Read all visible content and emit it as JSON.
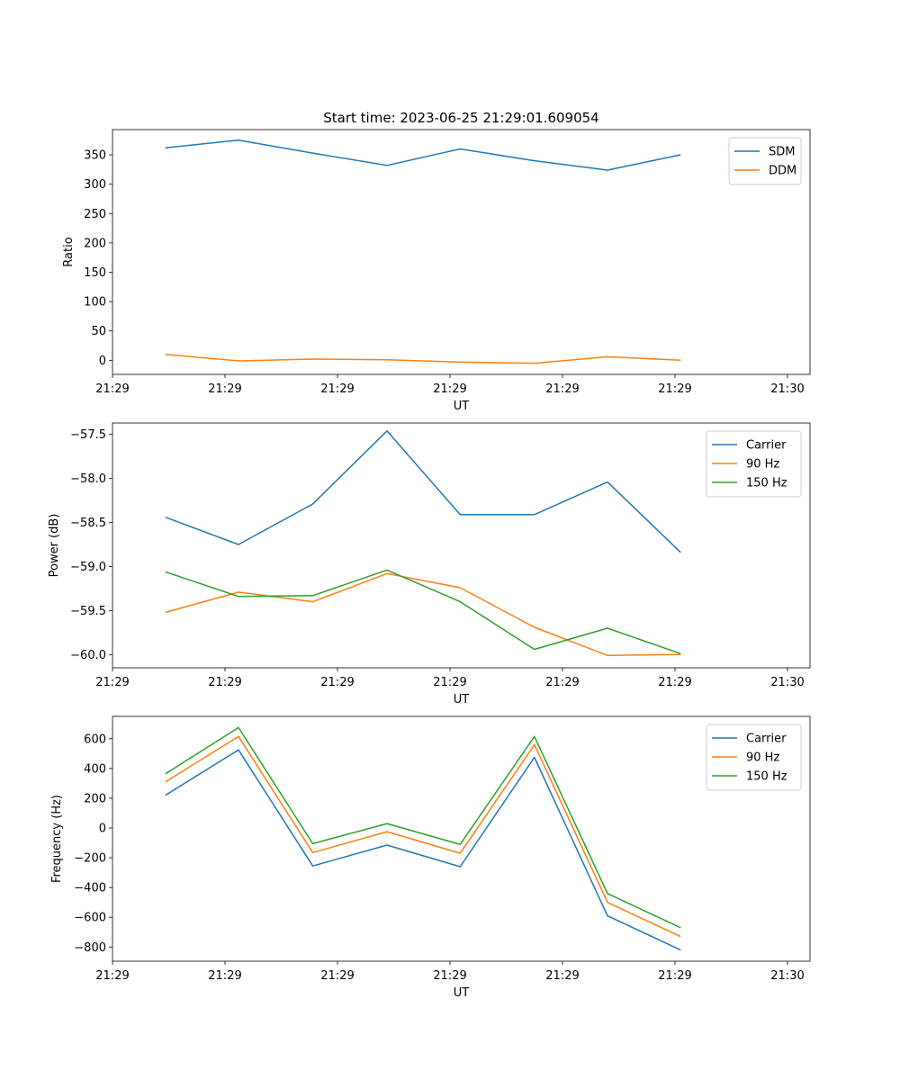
{
  "chart_data": [
    {
      "type": "line",
      "title": "Start time: 2023-06-25 21:29:01.609054",
      "xlabel": "UT",
      "ylabel": "Ratio",
      "x_tick_labels": [
        "21:29",
        "21:29",
        "21:29",
        "21:29",
        "21:29",
        "21:29",
        "21:30"
      ],
      "xlim": [
        0,
        6.2
      ],
      "x": [
        0.47,
        1.12,
        1.78,
        2.44,
        3.09,
        3.75,
        4.4,
        5.05
      ],
      "ylim": [
        -24,
        393
      ],
      "y_ticks": [
        0,
        50,
        100,
        150,
        200,
        250,
        300,
        350
      ],
      "legend": "top-right",
      "series": [
        {
          "name": "SDM",
          "color": "#1f77b4",
          "values": [
            362,
            375,
            353,
            332,
            360,
            340,
            324,
            350
          ]
        },
        {
          "name": "DDM",
          "color": "#ff7f0e",
          "values": [
            10,
            -1,
            2,
            1,
            -3,
            -5,
            6,
            0
          ]
        }
      ]
    },
    {
      "type": "line",
      "title": "",
      "xlabel": "UT",
      "ylabel": "Power (dB)",
      "x_tick_labels": [
        "21:29",
        "21:29",
        "21:29",
        "21:29",
        "21:29",
        "21:29",
        "21:30"
      ],
      "xlim": [
        0,
        6.2
      ],
      "x": [
        0.47,
        1.12,
        1.78,
        2.44,
        3.09,
        3.75,
        4.4,
        5.05
      ],
      "ylim": [
        -60.15,
        -57.37
      ],
      "y_ticks": [
        -60.0,
        -59.5,
        -59.0,
        -58.5,
        -58.0,
        -57.5
      ],
      "y_tick_labels": [
        "−60.0",
        "−59.5",
        "−59.0",
        "−58.5",
        "−58.0",
        "−57.5"
      ],
      "legend": "top-right",
      "series": [
        {
          "name": "Carrier",
          "color": "#1f77b4",
          "values": [
            -58.44,
            -58.75,
            -58.29,
            -57.46,
            -58.41,
            -58.41,
            -58.04,
            -58.84
          ]
        },
        {
          "name": "90 Hz",
          "color": "#ff7f0e",
          "values": [
            -59.52,
            -59.29,
            -59.4,
            -59.08,
            -59.24,
            -59.69,
            -60.01,
            -60.0
          ]
        },
        {
          "name": "150 Hz",
          "color": "#2ca02c",
          "values": [
            -59.06,
            -59.34,
            -59.33,
            -59.04,
            -59.4,
            -59.94,
            -59.7,
            -59.99
          ]
        }
      ]
    },
    {
      "type": "line",
      "title": "",
      "xlabel": "UT",
      "ylabel": "Frequency (Hz)",
      "x_tick_labels": [
        "21:29",
        "21:29",
        "21:29",
        "21:29",
        "21:29",
        "21:29",
        "21:30"
      ],
      "xlim": [
        0,
        6.2
      ],
      "x": [
        0.47,
        1.12,
        1.78,
        2.44,
        3.09,
        3.75,
        4.4,
        5.05
      ],
      "ylim": [
        -895,
        750
      ],
      "y_ticks": [
        -800,
        -600,
        -400,
        -200,
        0,
        200,
        400,
        600
      ],
      "y_tick_labels": [
        "−800",
        "−600",
        "−400",
        "−200",
        "0",
        "200",
        "400",
        "600"
      ],
      "legend": "top-right",
      "series": [
        {
          "name": "Carrier",
          "color": "#1f77b4",
          "values": [
            220,
            525,
            -255,
            -115,
            -260,
            475,
            -590,
            -820
          ]
        },
        {
          "name": "90 Hz",
          "color": "#ff7f0e",
          "values": [
            310,
            615,
            -165,
            -25,
            -170,
            560,
            -500,
            -730
          ]
        },
        {
          "name": "150 Hz",
          "color": "#2ca02c",
          "values": [
            365,
            675,
            -105,
            30,
            -110,
            615,
            -440,
            -670
          ]
        }
      ]
    }
  ]
}
